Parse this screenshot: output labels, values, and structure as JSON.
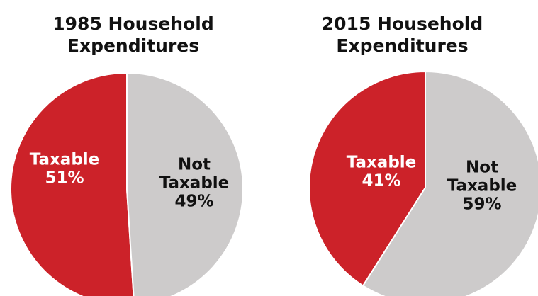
{
  "colors": {
    "taxable": "#cc2229",
    "not_taxable": "#cdcbcb",
    "slice_border": "#ffffff",
    "text_on_taxable": "#ffffff",
    "text_on_not_taxable": "#111111"
  },
  "chart_data": [
    {
      "type": "pie",
      "title_lines": [
        "1985 Household",
        "Expenditures"
      ],
      "categories": [
        "Taxable",
        "Not Taxable"
      ],
      "values": [
        51,
        49
      ],
      "label_lines": [
        [
          "Taxable",
          "51%"
        ],
        [
          "Not",
          "Taxable",
          "49%"
        ]
      ]
    },
    {
      "type": "pie",
      "title_lines": [
        "2015 Household",
        "Expenditures"
      ],
      "categories": [
        "Taxable",
        "Not Taxable"
      ],
      "values": [
        41,
        59
      ],
      "label_lines": [
        [
          "Taxable",
          "41%"
        ],
        [
          "Not",
          "Taxable",
          "59%"
        ]
      ]
    }
  ]
}
